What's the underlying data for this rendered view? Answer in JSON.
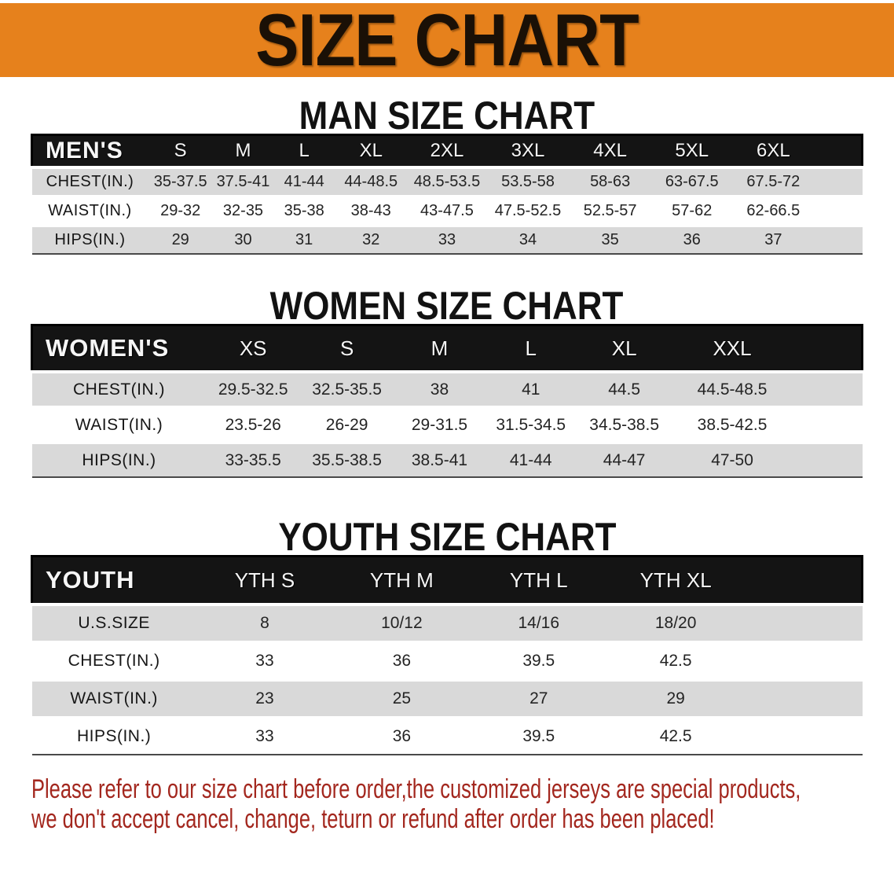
{
  "banner": {
    "title": "SIZE CHART"
  },
  "colors": {
    "banner_bg": "#E6811C",
    "header_bar": "#141414",
    "stripe": "#D9D9D9",
    "disclaimer_text": "#A3271E"
  },
  "sections": [
    {
      "id": "mens",
      "title": "MAN SIZE CHART",
      "table": {
        "header": [
          "MEN'S",
          "S",
          "M",
          "L",
          "XL",
          "2XL",
          "3XL",
          "4XL",
          "5XL",
          "6XL"
        ],
        "rows": [
          {
            "label": "CHEST(IN.)",
            "values": [
              "35-37.5",
              "37.5-41",
              "41-44",
              "44-48.5",
              "48.5-53.5",
              "53.5-58",
              "58-63",
              "63-67.5",
              "67.5-72"
            ]
          },
          {
            "label": "WAIST(IN.)",
            "values": [
              "29-32",
              "32-35",
              "35-38",
              "38-43",
              "43-47.5",
              "47.5-52.5",
              "52.5-57",
              "57-62",
              "62-66.5"
            ]
          },
          {
            "label": "HIPS(IN.)",
            "values": [
              "29",
              "30",
              "31",
              "32",
              "33",
              "34",
              "35",
              "36",
              "37"
            ]
          }
        ]
      }
    },
    {
      "id": "womens",
      "title": "WOMEN SIZE CHART",
      "table": {
        "header": [
          "WOMEN'S",
          "XS",
          "S",
          "M",
          "L",
          "XL",
          "XXL"
        ],
        "rows": [
          {
            "label": "CHEST(IN.)",
            "values": [
              "29.5-32.5",
              "32.5-35.5",
              "38",
              "41",
              "44.5",
              "44.5-48.5"
            ]
          },
          {
            "label": "WAIST(IN.)",
            "values": [
              "23.5-26",
              "26-29",
              "29-31.5",
              "31.5-34.5",
              "34.5-38.5",
              "38.5-42.5"
            ]
          },
          {
            "label": "HIPS(IN.)",
            "values": [
              "33-35.5",
              "35.5-38.5",
              "38.5-41",
              "41-44",
              "44-47",
              "47-50"
            ]
          }
        ]
      }
    },
    {
      "id": "youth",
      "title": "YOUTH SIZE CHART",
      "table": {
        "header": [
          "YOUTH",
          "YTH S",
          "YTH M",
          "YTH L",
          "YTH XL"
        ],
        "rows": [
          {
            "label": "U.S.SIZE",
            "values": [
              "8",
              "10/12",
              "14/16",
              "18/20"
            ]
          },
          {
            "label": "CHEST(IN.)",
            "values": [
              "33",
              "36",
              "39.5",
              "42.5"
            ]
          },
          {
            "label": "WAIST(IN.)",
            "values": [
              "23",
              "25",
              "27",
              "29"
            ]
          },
          {
            "label": "HIPS(IN.)",
            "values": [
              "33",
              "36",
              "39.5",
              "42.5"
            ]
          }
        ]
      }
    }
  ],
  "disclaimer": {
    "line1": "Please refer to our size chart before order,the customized jerseys are special products,",
    "line2": "we don't accept cancel, change, teturn or refund after order has been placed!"
  }
}
